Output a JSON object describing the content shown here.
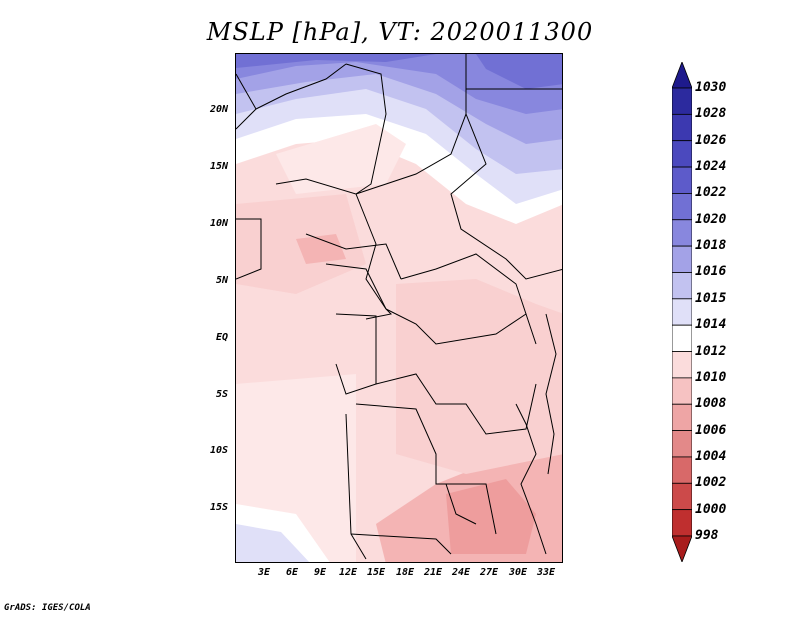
{
  "title": "MSLP [hPa], VT: 2020011300",
  "credit": "GrADS: IGES/COLA",
  "latitude_labels": [
    "20N",
    "15N",
    "10N",
    "5N",
    "EQ",
    "5S",
    "10S",
    "15S"
  ],
  "longitude_labels": [
    "3E",
    "6E",
    "9E",
    "12E",
    "15E",
    "18E",
    "21E",
    "24E",
    "27E",
    "30E",
    "33E"
  ],
  "colorbar": {
    "levels": [
      "1030",
      "1028",
      "1026",
      "1024",
      "1022",
      "1020",
      "1018",
      "1016",
      "1015",
      "1014",
      "1012",
      "1010",
      "1008",
      "1006",
      "1004",
      "1002",
      "1000",
      "998"
    ],
    "colors": [
      "#1e1a8c",
      "#2c2a9e",
      "#3c39b0",
      "#4b49be",
      "#5d5bca",
      "#7170d4",
      "#8887de",
      "#a3a2e7",
      "#c2c2f0",
      "#e0e0f8",
      "#ffffff",
      "#fbdcdc",
      "#f6c2c2",
      "#eea5a5",
      "#e38989",
      "#d86969",
      "#cc4a4a",
      "#bf2f2f",
      "#a81c1c"
    ]
  },
  "map": {
    "region": "Central Africa",
    "field": "mean sea level pressure",
    "colors": {
      "north_high": "#5a56cc",
      "north_mid": "#a6a4e8",
      "transition": "#e8e8fa",
      "neutral": "#fde8e8",
      "low_light": "#f9d0d0",
      "low_mid": "#f4b4b4",
      "low_deep": "#ee9d9d",
      "border_line": "#000000"
    }
  }
}
